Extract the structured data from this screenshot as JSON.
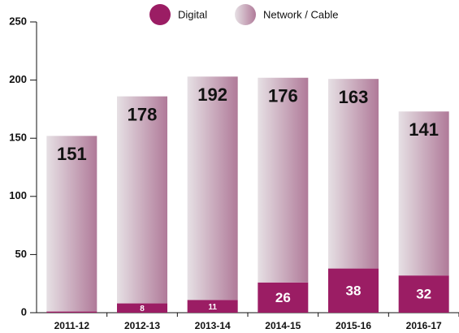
{
  "chart_data": {
    "type": "stacked-bar",
    "categories": [
      "2011-12",
      "2012-13",
      "2013-14",
      "2014-15",
      "2015-16",
      "2016-17"
    ],
    "series": [
      {
        "name": "Digital",
        "color": "#9b1d64",
        "values": [
          1,
          8,
          11,
          26,
          38,
          32
        ]
      },
      {
        "name": "Network / Cable",
        "color": "#b07a99",
        "values": [
          151,
          178,
          192,
          176,
          163,
          141
        ]
      }
    ],
    "ylim": [
      0,
      250
    ],
    "yticks": [
      0,
      50,
      100,
      150,
      200,
      250
    ],
    "legend": "top"
  }
}
